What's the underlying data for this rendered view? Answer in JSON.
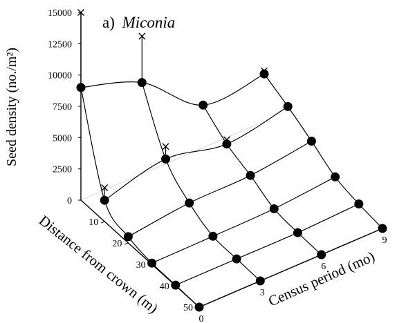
{
  "chart_data": {
    "type": "surface3d",
    "title": "a) Miconia",
    "title_prefix": "a)",
    "title_italic": "Miconia",
    "zlabel": "Seed density (no./m²)",
    "distance_label": "Distance from crown (m)",
    "period_label": "Census period (mo)",
    "z_ticks": [
      0,
      2500,
      5000,
      7500,
      10000,
      12500,
      15000
    ],
    "distance_ticks": [
      10,
      20,
      30,
      40,
      50
    ],
    "period_ticks": [
      0,
      3,
      6,
      9
    ],
    "grid": false,
    "marker_legend": {
      "observed": "filled circle",
      "predicted": "x"
    },
    "series": [
      {
        "period": 0,
        "distance": [
          0,
          10,
          20,
          30,
          40,
          50
        ],
        "values": [
          9000,
          1700,
          500,
          100,
          50,
          0
        ]
      },
      {
        "period": 3,
        "distance": [
          0,
          10,
          20,
          30,
          40,
          50
        ],
        "values": [
          7300,
          2900,
          1100,
          150,
          50,
          0
        ]
      },
      {
        "period": 6,
        "distance": [
          0,
          10,
          20,
          30,
          40,
          50
        ],
        "values": [
          3400,
          2000,
          1200,
          250,
          50,
          0
        ]
      },
      {
        "period": 9,
        "distance": [
          0,
          10,
          20,
          30,
          40,
          50
        ],
        "values": [
          3800,
          2900,
          1850,
          700,
          250,
          0
        ]
      }
    ],
    "predicted_x_markers": [
      {
        "period": 0,
        "distance": 0,
        "value": 15000
      },
      {
        "period": 0,
        "distance": 10,
        "value": 2700
      },
      {
        "period": 0,
        "distance": 40,
        "value": 50
      },
      {
        "period": 3,
        "distance": 0,
        "value": 11000
      },
      {
        "period": 3,
        "distance": 10,
        "value": 3900
      },
      {
        "period": 6,
        "distance": 10,
        "value": 2350
      },
      {
        "period": 6,
        "distance": 30,
        "value": 250
      },
      {
        "period": 9,
        "distance": 0,
        "value": 4050
      },
      {
        "period": 9,
        "distance": 50,
        "value": 0
      }
    ]
  }
}
